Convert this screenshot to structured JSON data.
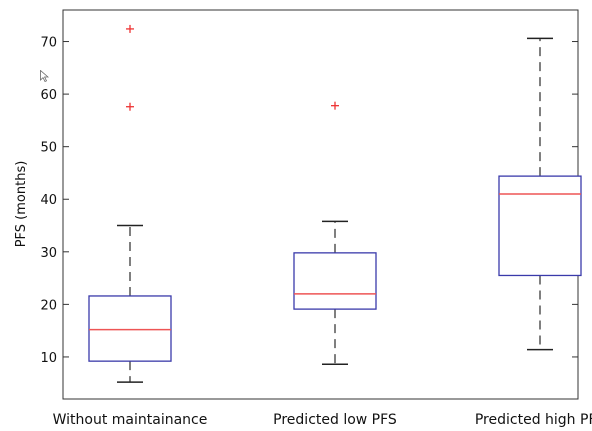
{
  "chart_data": {
    "type": "boxplot",
    "title": "",
    "xlabel": "",
    "ylabel": "PFS (months)",
    "ylim": [
      2,
      76
    ],
    "yticks": [
      10,
      20,
      30,
      40,
      50,
      60,
      70
    ],
    "grid": false,
    "categories": [
      "Without maintainance",
      "Predicted low PFS",
      "Predicted high PFS"
    ],
    "boxes": [
      {
        "whisker_low": 5.2,
        "q1": 9.2,
        "median": 15.2,
        "q3": 21.6,
        "whisker_high": 35.0,
        "outliers": [
          57.6,
          72.4
        ]
      },
      {
        "whisker_low": 8.6,
        "q1": 19.1,
        "median": 22.0,
        "q3": 29.8,
        "whisker_high": 35.8,
        "outliers": [
          57.8
        ]
      },
      {
        "whisker_low": 11.4,
        "q1": 25.5,
        "median": 41.0,
        "q3": 44.4,
        "whisker_high": 70.6,
        "outliers": []
      }
    ],
    "colors": {
      "box": "#3a3aaa",
      "median": "#ee5555",
      "whisker": "#555555",
      "outlier": "#ee3333",
      "axis": "#333333"
    }
  }
}
